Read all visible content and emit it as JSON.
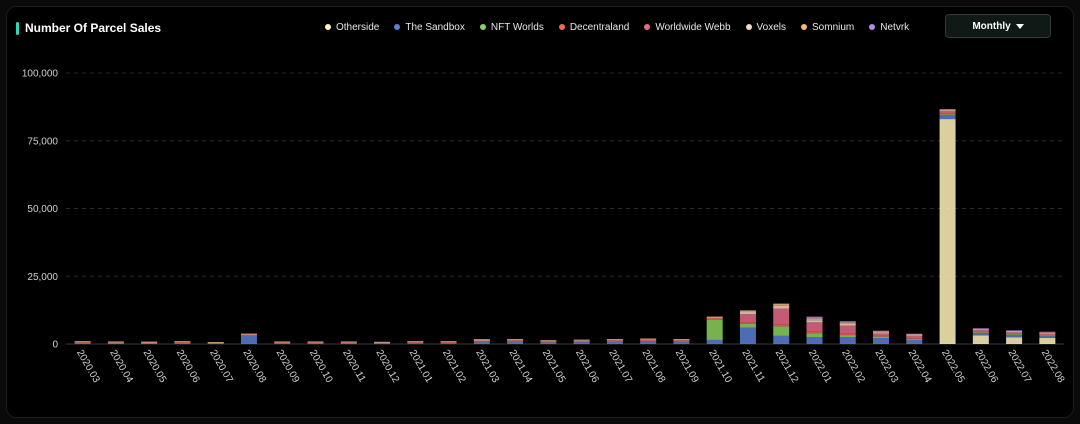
{
  "header": {
    "title": "Number Of Parcel Sales",
    "period_label": "Monthly",
    "period_icon": "caret-down-icon"
  },
  "legend": [
    {
      "name": "Otherside",
      "color": "#fff5b8"
    },
    {
      "name": "The Sandbox",
      "color": "#5b7fd4"
    },
    {
      "name": "NFT Worlds",
      "color": "#8bd15a"
    },
    {
      "name": "Decentraland",
      "color": "#f06a55"
    },
    {
      "name": "Worldwide Webb",
      "color": "#e86a8a"
    },
    {
      "name": "Voxels",
      "color": "#f3d6c4"
    },
    {
      "name": "Somnium",
      "color": "#f3b878"
    },
    {
      "name": "Netvrk",
      "color": "#b48ae8"
    }
  ],
  "chart_data": {
    "type": "bar",
    "stacked": true,
    "title": "Number Of Parcel Sales",
    "xlabel": "",
    "ylabel": "",
    "ylim": [
      0,
      100000
    ],
    "yticks": [
      0,
      25000,
      50000,
      75000,
      100000
    ],
    "ytick_labels": [
      "0",
      "25,000",
      "50,000",
      "75,000",
      "100,000"
    ],
    "grid": "horizontal-dashed",
    "legend_position": "top",
    "categories": [
      "2020.03",
      "2020.04",
      "2020.05",
      "2020.06",
      "2020.07",
      "2020.08",
      "2020.09",
      "2020.10",
      "2020.11",
      "2020.12",
      "2021.01",
      "2021.02",
      "2021.03",
      "2021.04",
      "2021.05",
      "2021.06",
      "2021.07",
      "2021.08",
      "2021.09",
      "2021.10",
      "2021.11",
      "2021.12",
      "2022.01",
      "2022.02",
      "2022.03",
      "2022.04",
      "2022.05",
      "2022.06",
      "2022.07",
      "2022.08"
    ],
    "series": [
      {
        "name": "Otherside",
        "color": "#fff5b8",
        "values": [
          0,
          0,
          0,
          0,
          0,
          0,
          0,
          0,
          0,
          0,
          0,
          0,
          0,
          0,
          0,
          0,
          0,
          0,
          0,
          0,
          0,
          0,
          0,
          0,
          0,
          0,
          83000,
          3200,
          2500,
          2200
        ]
      },
      {
        "name": "The Sandbox",
        "color": "#5b7fd4",
        "values": [
          200,
          150,
          150,
          200,
          100,
          3000,
          200,
          200,
          200,
          150,
          300,
          300,
          800,
          900,
          600,
          700,
          900,
          1100,
          900,
          1500,
          6000,
          3000,
          2500,
          2500,
          2200,
          1500,
          1500,
          800,
          800,
          700
        ]
      },
      {
        "name": "NFT Worlds",
        "color": "#8bd15a",
        "values": [
          0,
          0,
          0,
          0,
          0,
          0,
          0,
          0,
          0,
          0,
          0,
          0,
          0,
          0,
          0,
          0,
          0,
          0,
          0,
          7500,
          1500,
          3500,
          1500,
          800,
          500,
          400,
          300,
          300,
          300,
          300
        ]
      },
      {
        "name": "Decentraland",
        "color": "#f06a55",
        "values": [
          500,
          450,
          400,
          500,
          300,
          500,
          400,
          400,
          400,
          350,
          400,
          400,
          500,
          500,
          400,
          500,
          500,
          500,
          500,
          600,
          500,
          600,
          500,
          500,
          400,
          300,
          300,
          300,
          300,
          300
        ]
      },
      {
        "name": "Worldwide Webb",
        "color": "#e86a8a",
        "values": [
          0,
          0,
          0,
          0,
          0,
          0,
          0,
          0,
          0,
          0,
          0,
          0,
          0,
          0,
          0,
          0,
          0,
          0,
          0,
          0,
          3000,
          6000,
          3500,
          3000,
          800,
          800,
          800,
          500,
          400,
          300
        ]
      },
      {
        "name": "Voxels",
        "color": "#f3d6c4",
        "values": [
          100,
          100,
          100,
          100,
          50,
          100,
          100,
          100,
          100,
          100,
          100,
          100,
          300,
          200,
          200,
          200,
          200,
          200,
          200,
          300,
          800,
          1000,
          800,
          600,
          400,
          300,
          300,
          300,
          300,
          300
        ]
      },
      {
        "name": "Somnium",
        "color": "#f3b878",
        "values": [
          50,
          50,
          50,
          50,
          30,
          50,
          50,
          50,
          50,
          50,
          50,
          50,
          200,
          100,
          100,
          100,
          100,
          100,
          100,
          200,
          600,
          800,
          700,
          500,
          300,
          200,
          200,
          200,
          200,
          200
        ]
      },
      {
        "name": "Netvrk",
        "color": "#b48ae8",
        "values": [
          0,
          0,
          0,
          0,
          0,
          0,
          0,
          0,
          0,
          0,
          0,
          0,
          0,
          0,
          0,
          0,
          0,
          0,
          0,
          0,
          0,
          0,
          600,
          500,
          300,
          300,
          300,
          200,
          200,
          200
        ]
      }
    ]
  }
}
